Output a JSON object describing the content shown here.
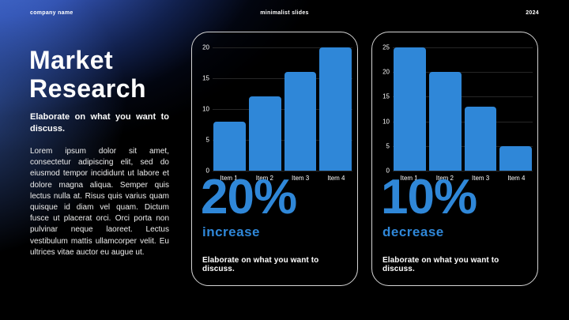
{
  "header": {
    "company": "company name",
    "center": "minimalist slides",
    "year": "2024"
  },
  "intro": {
    "title": "Market Research",
    "subtitle": "Elaborate on what you want to discuss.",
    "body": "Lorem ipsum dolor sit amet, consectetur adipiscing elit, sed do eiusmod tempor incididunt ut labore et dolore magna aliqua. Semper quis lectus nulla at. Risus quis varius quam quisque id diam vel quam. Dictum fusce ut placerat orci. Orci porta non pulvinar neque laoreet. Lectus vestibulum mattis ullamcorper velit. Eu ultrices vitae auctor eu augue ut."
  },
  "colors": {
    "accent": "#2f87d8",
    "bar": "#2f87d8",
    "panel_border": "#d4d4d4",
    "grid": "#262626",
    "background": "#000000",
    "glow_blue": "#3a5fcc"
  },
  "chart_data": [
    {
      "type": "bar",
      "title": "",
      "xlabel": "",
      "ylabel": "",
      "categories": [
        "Item 1",
        "Item 2",
        "Item 3",
        "Item 4"
      ],
      "values": [
        8,
        12,
        16,
        20
      ],
      "ylim": [
        0,
        20
      ],
      "yticks": [
        0,
        5,
        10,
        15,
        20
      ],
      "grid": "horizontal",
      "legend": "none",
      "stat_value": "20%",
      "stat_label": "increase",
      "caption": "Elaborate on what you want to discuss."
    },
    {
      "type": "bar",
      "title": "",
      "xlabel": "",
      "ylabel": "",
      "categories": [
        "Item 1",
        "Item 2",
        "Item 3",
        "Item 4"
      ],
      "values": [
        25,
        20,
        13,
        5
      ],
      "ylim": [
        0,
        25
      ],
      "yticks": [
        0,
        5,
        10,
        15,
        20,
        25
      ],
      "grid": "horizontal",
      "legend": "none",
      "stat_value": "10%",
      "stat_label": "decrease",
      "caption": "Elaborate on what you want to discuss."
    }
  ]
}
